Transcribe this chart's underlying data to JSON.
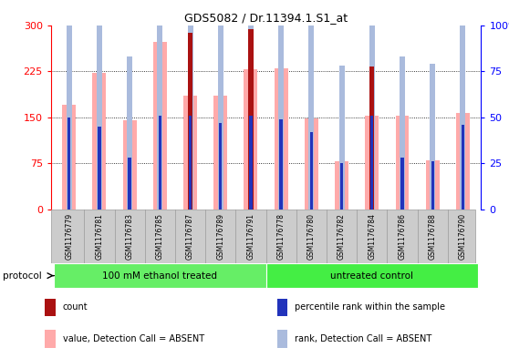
{
  "title": "GDS5082 / Dr.11394.1.S1_at",
  "samples": [
    "GSM1176779",
    "GSM1176781",
    "GSM1176783",
    "GSM1176785",
    "GSM1176787",
    "GSM1176789",
    "GSM1176791",
    "GSM1176778",
    "GSM1176780",
    "GSM1176782",
    "GSM1176784",
    "GSM1176786",
    "GSM1176788",
    "GSM1176790"
  ],
  "count_values": [
    0,
    0,
    0,
    0,
    288,
    0,
    293,
    0,
    0,
    0,
    232,
    0,
    0,
    0
  ],
  "rank_values": [
    50,
    45,
    28,
    51,
    51,
    47,
    51,
    49,
    42,
    25,
    51,
    28,
    26,
    46
  ],
  "value_absent": [
    170,
    222,
    145,
    272,
    185,
    185,
    228,
    230,
    148,
    78,
    152,
    153,
    80,
    157
  ],
  "rank_absent": [
    145,
    133,
    83,
    151,
    140,
    139,
    150,
    147,
    128,
    78,
    152,
    83,
    79,
    139
  ],
  "groups": [
    {
      "label": "100 mM ethanol treated",
      "start": 0,
      "end": 7,
      "color": "#66ee66"
    },
    {
      "label": "untreated control",
      "start": 7,
      "end": 14,
      "color": "#44ee44"
    }
  ],
  "left_ylim": [
    0,
    300
  ],
  "right_ylim": [
    0,
    100
  ],
  "left_yticks": [
    0,
    75,
    150,
    225,
    300
  ],
  "right_yticks": [
    0,
    25,
    50,
    75,
    100
  ],
  "right_yticklabels": [
    "0",
    "25",
    "50",
    "75",
    "100%"
  ],
  "color_count": "#aa1111",
  "color_rank": "#2233bb",
  "color_value_absent": "#ffaaaa",
  "color_rank_absent": "#aabbdd",
  "protocol_label": "protocol",
  "legend_items": [
    {
      "color": "#aa1111",
      "label": "count"
    },
    {
      "color": "#2233bb",
      "label": "percentile rank within the sample"
    },
    {
      "color": "#ffaaaa",
      "label": "value, Detection Call = ABSENT"
    },
    {
      "color": "#aabbdd",
      "label": "rank, Detection Call = ABSENT"
    }
  ]
}
